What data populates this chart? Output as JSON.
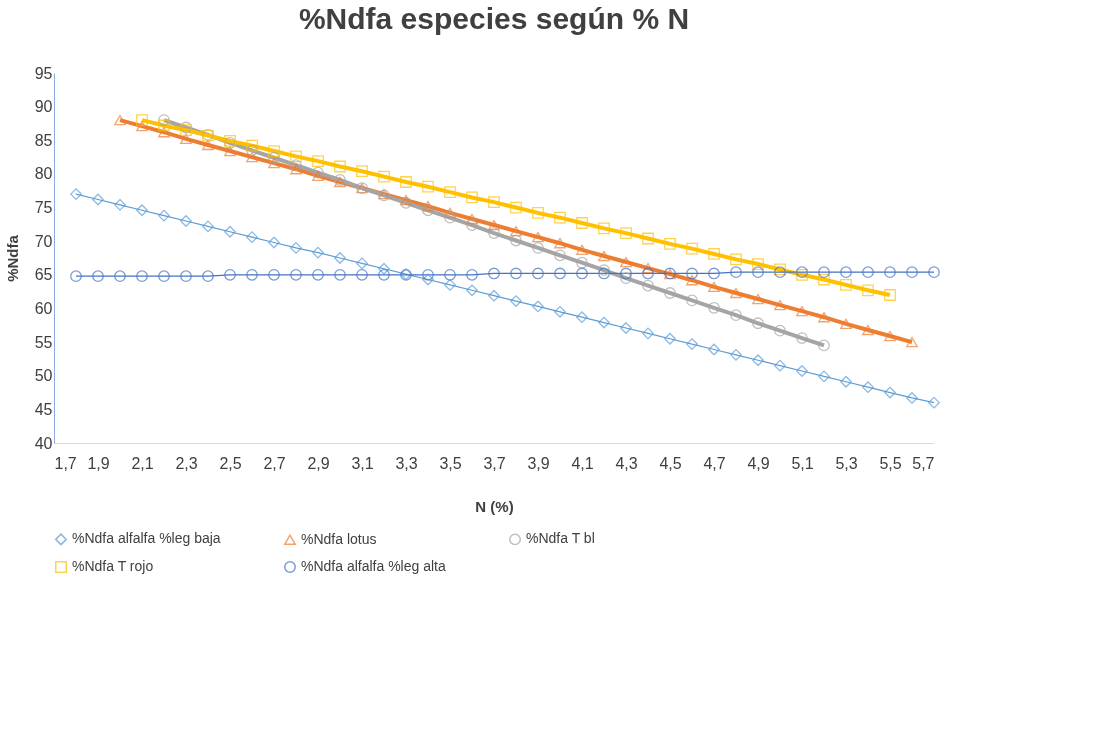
{
  "chart_data": {
    "type": "line",
    "title": "%Ndfa especies según % N",
    "xlabel": "N (%)",
    "ylabel": "%Ndfa",
    "xlim": [
      1.7,
      5.7
    ],
    "xticks": [
      {
        "value": 1.7,
        "label": "1,7"
      },
      {
        "value": 1.9,
        "label": "1,9"
      },
      {
        "value": 2.1,
        "label": "2,1"
      },
      {
        "value": 2.3,
        "label": "2,3"
      },
      {
        "value": 2.5,
        "label": "2,5"
      },
      {
        "value": 2.7,
        "label": "2,7"
      },
      {
        "value": 2.9,
        "label": "2,9"
      },
      {
        "value": 3.1,
        "label": "3,1"
      },
      {
        "value": 3.3,
        "label": "3,3"
      },
      {
        "value": 3.5,
        "label": "3,5"
      },
      {
        "value": 3.7,
        "label": "3,7"
      },
      {
        "value": 3.9,
        "label": "3,9"
      },
      {
        "value": 4.1,
        "label": "4,1"
      },
      {
        "value": 4.3,
        "label": "4,3"
      },
      {
        "value": 4.5,
        "label": "4,5"
      },
      {
        "value": 4.7,
        "label": "4,7"
      },
      {
        "value": 4.9,
        "label": "4,9"
      },
      {
        "value": 5.1,
        "label": "5,1"
      },
      {
        "value": 5.3,
        "label": "5,3"
      },
      {
        "value": 5.5,
        "label": "5,5"
      },
      {
        "value": 5.7,
        "label": "5,7"
      }
    ],
    "ylim": [
      40,
      95
    ],
    "yticks": [
      40,
      45,
      50,
      55,
      60,
      65,
      70,
      75,
      80,
      85,
      90,
      95
    ],
    "grid": false,
    "legend": "bottom",
    "line_style": "solid",
    "series": [
      {
        "name": "%Ndfa alfalfa %leg baja",
        "color": "#5b9bd5",
        "marker": "diamond",
        "x": [
          1.8,
          1.9,
          2.0,
          2.1,
          2.2,
          2.3,
          2.4,
          2.5,
          2.6,
          2.7,
          2.8,
          2.9,
          3.0,
          3.1,
          3.2,
          3.3,
          3.4,
          3.5,
          3.6,
          3.7,
          3.8,
          3.9,
          4.0,
          4.1,
          4.2,
          4.3,
          4.4,
          4.5,
          4.6,
          4.7,
          4.8,
          4.9,
          5.0,
          5.1,
          5.2,
          5.3,
          5.4,
          5.5,
          5.6,
          5.7
        ],
        "values": [
          77.0,
          76.2,
          75.4,
          74.6,
          73.8,
          73.0,
          72.2,
          71.4,
          70.6,
          69.8,
          69.0,
          68.3,
          67.5,
          66.7,
          65.9,
          65.1,
          64.3,
          63.5,
          62.7,
          61.9,
          61.1,
          60.3,
          59.5,
          58.7,
          57.9,
          57.1,
          56.3,
          55.5,
          54.7,
          53.9,
          53.1,
          52.3,
          51.5,
          50.7,
          49.9,
          49.1,
          48.3,
          47.5,
          46.7,
          46.0
        ]
      },
      {
        "name": "%Ndfa lotus",
        "color": "#ed7d31",
        "marker": "triangle",
        "x": [
          2.0,
          2.1,
          2.2,
          2.3,
          2.4,
          2.5,
          2.6,
          2.7,
          2.8,
          2.9,
          3.0,
          3.1,
          3.2,
          3.3,
          3.4,
          3.5,
          3.6,
          3.7,
          3.8,
          3.9,
          4.0,
          4.1,
          4.2,
          4.3,
          4.4,
          4.5,
          4.6,
          4.7,
          4.8,
          4.9,
          5.0,
          5.1,
          5.2,
          5.3,
          5.4,
          5.5,
          5.6
        ],
        "values": [
          88.0,
          87.1,
          86.2,
          85.2,
          84.3,
          83.4,
          82.5,
          81.6,
          80.7,
          79.7,
          78.8,
          77.9,
          77.0,
          76.1,
          75.2,
          74.2,
          73.3,
          72.4,
          71.5,
          70.6,
          69.7,
          68.7,
          67.8,
          66.9,
          66.0,
          65.1,
          64.2,
          63.2,
          62.3,
          61.4,
          60.5,
          59.6,
          58.7,
          57.7,
          56.8,
          55.9,
          55.0
        ]
      },
      {
        "name": "%Ndfa T bl",
        "color": "#a5a5a5",
        "marker": "circle",
        "x": [
          2.2,
          2.3,
          2.4,
          2.5,
          2.6,
          2.7,
          2.8,
          2.9,
          3.0,
          3.1,
          3.2,
          3.3,
          3.4,
          3.5,
          3.6,
          3.7,
          3.8,
          3.9,
          4.0,
          4.1,
          4.2,
          4.3,
          4.4,
          4.5,
          4.6,
          4.7,
          4.8,
          4.9,
          5.0,
          5.1,
          5.2
        ],
        "values": [
          88.0,
          86.9,
          85.8,
          84.6,
          83.5,
          82.4,
          81.3,
          80.2,
          79.1,
          77.9,
          76.8,
          75.7,
          74.6,
          73.5,
          72.4,
          71.2,
          70.1,
          69.0,
          67.9,
          66.8,
          65.7,
          64.5,
          63.4,
          62.3,
          61.2,
          60.1,
          59.0,
          57.8,
          56.7,
          55.6,
          54.5
        ]
      },
      {
        "name": "%Ndfa T rojo",
        "color": "#ffc000",
        "marker": "square",
        "x": [
          2.1,
          2.2,
          2.3,
          2.4,
          2.5,
          2.6,
          2.7,
          2.8,
          2.9,
          3.0,
          3.1,
          3.2,
          3.3,
          3.4,
          3.5,
          3.6,
          3.7,
          3.8,
          3.9,
          4.0,
          4.1,
          4.2,
          4.3,
          4.4,
          4.5,
          4.6,
          4.7,
          4.8,
          4.9,
          5.0,
          5.1,
          5.2,
          5.3,
          5.4,
          5.5
        ],
        "values": [
          88.0,
          87.2,
          86.5,
          85.7,
          84.9,
          84.2,
          83.4,
          82.6,
          81.9,
          81.1,
          80.4,
          79.6,
          78.8,
          78.1,
          77.3,
          76.5,
          75.8,
          75.0,
          74.2,
          73.5,
          72.7,
          71.9,
          71.2,
          70.4,
          69.6,
          68.9,
          68.1,
          67.3,
          66.6,
          65.8,
          65.0,
          64.3,
          63.5,
          62.7,
          62.0
        ]
      },
      {
        "name": "%Ndfa alfalfa %leg alta",
        "color": "#4472c4",
        "marker": "circle",
        "x": [
          1.8,
          1.9,
          2.0,
          2.1,
          2.2,
          2.3,
          2.4,
          2.5,
          2.6,
          2.7,
          2.8,
          2.9,
          3.0,
          3.1,
          3.2,
          3.3,
          3.4,
          3.5,
          3.6,
          3.7,
          3.8,
          3.9,
          4.0,
          4.1,
          4.2,
          4.3,
          4.4,
          4.5,
          4.6,
          4.7,
          4.8,
          4.9,
          5.0,
          5.1,
          5.2,
          5.3,
          5.4,
          5.5,
          5.6,
          5.7
        ],
        "values": [
          64.8,
          64.8,
          64.8,
          64.8,
          64.8,
          64.8,
          64.8,
          65.0,
          65.0,
          65.0,
          65.0,
          65.0,
          65.0,
          65.0,
          65.0,
          65.0,
          65.0,
          65.0,
          65.0,
          65.2,
          65.2,
          65.2,
          65.2,
          65.2,
          65.2,
          65.2,
          65.2,
          65.2,
          65.2,
          65.2,
          65.4,
          65.4,
          65.4,
          65.4,
          65.4,
          65.4,
          65.4,
          65.4,
          65.4,
          65.4
        ]
      }
    ]
  }
}
